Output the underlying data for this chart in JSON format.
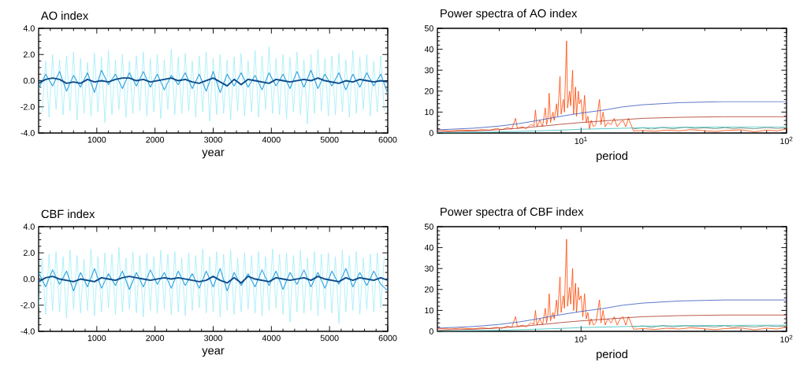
{
  "chart_data": [
    {
      "type": "line",
      "title": "AO index",
      "xlabel": "year",
      "xlim": [
        0,
        6000
      ],
      "ylim": [
        -4,
        4
      ],
      "xticks": [
        {
          "value": 200,
          "label": null
        },
        {
          "value": 400,
          "label": null
        },
        {
          "value": 600,
          "label": null
        },
        {
          "value": 800,
          "label": null
        },
        1000,
        {
          "value": 1200,
          "label": null
        },
        {
          "value": 1400,
          "label": null
        },
        {
          "value": 1600,
          "label": null
        },
        {
          "value": 1800,
          "label": null
        },
        2000,
        {
          "value": 2200,
          "label": null
        },
        {
          "value": 2400,
          "label": null
        },
        {
          "value": 2600,
          "label": null
        },
        {
          "value": 2800,
          "label": null
        },
        3000,
        {
          "value": 3200,
          "label": null
        },
        {
          "value": 3400,
          "label": null
        },
        {
          "value": 3600,
          "label": null
        },
        {
          "value": 3800,
          "label": null
        },
        4000,
        {
          "value": 4200,
          "label": null
        },
        {
          "value": 4400,
          "label": null
        },
        {
          "value": 4600,
          "label": null
        },
        {
          "value": 4800,
          "label": null
        },
        5000,
        {
          "value": 5200,
          "label": null
        },
        {
          "value": 5400,
          "label": null
        },
        {
          "value": 5600,
          "label": null
        },
        {
          "value": 5800,
          "label": null
        },
        6000
      ],
      "yticks": [
        {
          "value": -4,
          "label": "-4.0"
        },
        {
          "value": -3.5,
          "label": null
        },
        {
          "value": -3,
          "label": null
        },
        {
          "value": -2.5,
          "label": null
        },
        {
          "value": -2,
          "label": "-2.0"
        },
        {
          "value": -1.5,
          "label": null
        },
        {
          "value": -1,
          "label": null
        },
        {
          "value": -0.5,
          "label": null
        },
        {
          "value": 0,
          "label": "0.0"
        },
        {
          "value": 0.5,
          "label": null
        },
        {
          "value": 1,
          "label": null
        },
        {
          "value": 1.5,
          "label": null
        },
        {
          "value": 2,
          "label": "2.0"
        },
        {
          "value": 2.5,
          "label": null
        },
        {
          "value": 3,
          "label": null
        },
        {
          "value": 3.5,
          "label": null
        },
        {
          "value": 4,
          "label": "4.0"
        }
      ],
      "x": [
        60,
        120,
        180,
        240,
        300,
        360,
        420,
        480,
        540,
        600,
        660,
        720,
        780,
        840,
        900,
        960,
        1020,
        1080,
        1140,
        1200,
        1260,
        1320,
        1380,
        1440,
        1500,
        1560,
        1620,
        1680,
        1740,
        1800,
        1860,
        1920,
        1980,
        2040,
        2100,
        2160,
        2220,
        2280,
        2340,
        2400,
        2460,
        2520,
        2580,
        2640,
        2700,
        2760,
        2820,
        2880,
        2940,
        3000,
        3060,
        3120,
        3180,
        3240,
        3300,
        3360,
        3420,
        3480,
        3540,
        3600,
        3660,
        3720,
        3780,
        3840,
        3900,
        3960,
        4020,
        4080,
        4140,
        4200,
        4260,
        4320,
        4380,
        4440,
        4500,
        4560,
        4620,
        4680,
        4740,
        4800,
        4860,
        4920,
        4980,
        5040,
        5100,
        5160,
        5220,
        5280,
        5340,
        5400,
        5460,
        5520,
        5580,
        5640,
        5700,
        5760,
        5820,
        5880,
        5940
      ],
      "series": [
        {
          "color": "#8ceaf8",
          "values": [
            -2.4,
            1.5,
            -2.8,
            2.0,
            -2.2,
            1.6,
            -2.6,
            1.9,
            -2.3,
            2.2,
            -3.0,
            1.7,
            -2.5,
            1.4,
            -2.7,
            2.1,
            -2.4,
            1.8,
            -3.2,
            2.3,
            -2.6,
            1.6,
            -2.2,
            2.0,
            -2.8,
            1.5,
            -2.5,
            1.9,
            -2.3,
            2.2,
            -2.7,
            1.7,
            -2.4,
            2.0,
            -2.9,
            1.6,
            -2.2,
            2.4,
            -2.6,
            1.8,
            -2.5,
            2.1,
            -2.3,
            1.5,
            -2.8,
            1.9,
            -2.4,
            2.2,
            -3.1,
            1.7,
            -2.6,
            2.0,
            -2.5,
            1.6,
            -3.0,
            1.8,
            -2.3,
            2.1,
            -2.7,
            1.5,
            -2.4,
            2.3,
            -2.8,
            1.9,
            -2.2,
            2.6,
            -2.5,
            1.7,
            -2.6,
            2.0,
            -2.9,
            1.8,
            -2.4,
            2.2,
            -2.6,
            1.6,
            -3.3,
            2.0,
            -2.5,
            2.4,
            -2.3,
            1.7,
            -2.7,
            1.9,
            -2.6,
            2.1,
            -2.4,
            1.6,
            -2.8,
            2.3,
            -2.5,
            1.8,
            -2.2,
            2.0,
            -2.7,
            1.5,
            -2.4,
            1.9,
            -2.3
          ]
        },
        {
          "color": "#2a9fdf",
          "x": [
            0,
            120,
            240,
            360,
            480,
            600,
            720,
            840,
            960,
            1080,
            1200,
            1320,
            1440,
            1560,
            1680,
            1800,
            1920,
            2040,
            2160,
            2280,
            2400,
            2520,
            2640,
            2760,
            2880,
            3000,
            3120,
            3240,
            3360,
            3480,
            3600,
            3720,
            3840,
            3960,
            4080,
            4200,
            4320,
            4440,
            4560,
            4680,
            4800,
            4920,
            5040,
            5160,
            5280,
            5400,
            5520,
            5640,
            5760,
            5880,
            6000
          ],
          "values": [
            -0.6,
            0.5,
            -0.4,
            0.7,
            -0.8,
            0.4,
            -0.5,
            0.6,
            -0.9,
            0.8,
            -0.3,
            0.5,
            -0.6,
            0.6,
            -0.4,
            0.7,
            -0.5,
            0.5,
            -0.7,
            0.4,
            -0.3,
            0.6,
            -0.6,
            0.5,
            -0.8,
            0.7,
            -0.9,
            0.5,
            -0.4,
            0.6,
            -0.5,
            0.4,
            -0.7,
            0.6,
            -0.4,
            0.5,
            -0.6,
            0.7,
            -0.5,
            0.8,
            -0.6,
            0.5,
            -0.4,
            0.6,
            -0.7,
            0.5,
            -0.5,
            0.6,
            -0.4,
            0.5,
            -1.0
          ]
        },
        {
          "color": "#0b4a8a",
          "x": [
            0,
            120,
            240,
            360,
            480,
            600,
            720,
            840,
            960,
            1080,
            1200,
            1320,
            1440,
            1560,
            1680,
            1800,
            1920,
            2040,
            2160,
            2280,
            2400,
            2520,
            2640,
            2760,
            2880,
            3000,
            3120,
            3240,
            3360,
            3480,
            3600,
            3720,
            3840,
            3960,
            4080,
            4200,
            4320,
            4440,
            4560,
            4680,
            4800,
            4920,
            5040,
            5160,
            5280,
            5400,
            5520,
            5640,
            5760,
            5880,
            6000
          ],
          "values": [
            -0.2,
            0.1,
            0.2,
            0.1,
            -0.2,
            -0.1,
            -0.2,
            0.1,
            -0.1,
            0.0,
            -0.1,
            0.1,
            0.2,
            0.2,
            0.0,
            0.1,
            -0.1,
            0.0,
            0.1,
            0.2,
            0.0,
            0.1,
            -0.1,
            -0.2,
            0.0,
            0.2,
            -0.1,
            -0.4,
            0.1,
            -0.3,
            0.1,
            0.0,
            -0.1,
            -0.2,
            0.1,
            0.0,
            -0.1,
            0.0,
            0.1,
            0.0,
            0.2,
            0.0,
            -0.1,
            -0.2,
            0.0,
            -0.1,
            0.1,
            0.0,
            -0.1,
            0.0,
            -0.1
          ]
        }
      ]
    },
    {
      "type": "line",
      "title": "Power spectra of AO index",
      "xlabel": "period",
      "log": "x",
      "xlim": [
        2,
        100
      ],
      "ylim": [
        0,
        50
      ],
      "xticks": [
        {
          "value": 4,
          "label": null
        },
        {
          "value": 6,
          "label": null
        },
        {
          "value": 8,
          "label": null
        },
        {
          "value": 10,
          "label": "10$^{1}$"
        },
        {
          "value": 20,
          "label": null
        },
        {
          "value": 40,
          "label": null
        },
        {
          "value": 60,
          "label": null
        },
        {
          "value": 80,
          "label": null
        },
        {
          "value": 100,
          "label": "10$^{2}$"
        }
      ],
      "yticks": [
        0,
        {
          "value": 2,
          "label": null
        },
        {
          "value": 4,
          "label": null
        },
        {
          "value": 6,
          "label": null
        },
        {
          "value": 8,
          "label": null
        },
        10,
        {
          "value": 12,
          "label": null
        },
        {
          "value": 14,
          "label": null
        },
        {
          "value": 16,
          "label": null
        },
        {
          "value": 18,
          "label": null
        },
        20,
        {
          "value": 22,
          "label": null
        },
        {
          "value": 24,
          "label": null
        },
        {
          "value": 26,
          "label": null
        },
        {
          "value": 28,
          "label": null
        },
        30,
        {
          "value": 32,
          "label": null
        },
        {
          "value": 34,
          "label": null
        },
        {
          "value": 36,
          "label": null
        },
        {
          "value": 38,
          "label": null
        },
        40,
        {
          "value": 42,
          "label": null
        },
        {
          "value": 44,
          "label": null
        },
        {
          "value": 46,
          "label": null
        },
        {
          "value": 48,
          "label": null
        },
        50
      ],
      "series": [
        {
          "color": "#5f7f6c",
          "x": [
            18,
            20,
            22,
            25,
            28,
            32,
            36,
            40,
            45,
            50,
            55,
            60,
            70,
            80,
            90,
            100
          ],
          "values": [
            2,
            2.5,
            1.8,
            2.7,
            2.0,
            2.8,
            2.2,
            2.5,
            2.0,
            2.6,
            2.1,
            2.4,
            2.0,
            2.6,
            2.2,
            2.5
          ]
        },
        {
          "color": "#33bbbb",
          "x": [
            2,
            4,
            6,
            8,
            10,
            15,
            20,
            40,
            100
          ],
          "values": [
            0.2,
            0.5,
            1,
            1.4,
            1.8,
            2.2,
            2.5,
            2.8,
            3.0
          ]
        },
        {
          "color": "#ff4500",
          "x": [
            2.0,
            2.3,
            2.6,
            3.0,
            3.3,
            3.6,
            3.9,
            4.1,
            4.4,
            4.6,
            4.8,
            4.9,
            5.2,
            5.4,
            5.7,
            5.9,
            6.0,
            6.1,
            6.3,
            6.5,
            6.7,
            6.8,
            6.9,
            7.0,
            7.1,
            7.3,
            7.4,
            7.6,
            7.7,
            7.9,
            8.0,
            8.2,
            8.3,
            8.5,
            8.6,
            8.8,
            8.9,
            9.1,
            9.2,
            9.4,
            9.5,
            9.7,
            9.8,
            10.0,
            10.2,
            10.4,
            10.6,
            10.8,
            11.0,
            11.2,
            11.5,
            11.8,
            12.3,
            12.5,
            12.8,
            13.1,
            13.5,
            14,
            14.5,
            15,
            15.5,
            16,
            16.5,
            17,
            17.5,
            18,
            20,
            23,
            26,
            30,
            34,
            40,
            45,
            50,
            60,
            70,
            80,
            90,
            100
          ],
          "values": [
            1.5,
            1.0,
            1.4,
            1.2,
            1.6,
            1.3,
            2.2,
            1.5,
            2.6,
            1.8,
            7,
            2.2,
            3,
            2,
            4,
            3.5,
            11,
            3,
            6,
            3,
            12,
            4,
            7,
            19,
            5,
            10,
            6,
            14,
            8,
            27,
            9,
            16,
            10,
            44,
            12,
            20,
            13,
            30,
            9,
            22,
            8,
            20,
            14,
            16,
            6,
            18,
            5,
            8,
            2,
            6,
            3,
            4,
            16,
            4,
            10,
            3,
            5,
            4,
            7,
            3,
            5,
            6,
            3,
            7,
            4,
            1,
            1.2,
            0.8,
            1.4,
            1.0,
            1.6,
            1.1,
            0.7,
            1.2,
            1.5,
            0.6,
            1.4,
            1.0,
            2.0
          ]
        },
        {
          "color": "#3355bb",
          "x": [
            2,
            3,
            4,
            5,
            6,
            7,
            8,
            10,
            13,
            16,
            20,
            30,
            50,
            100
          ],
          "values": [
            1.5,
            2.3,
            3.3,
            4.5,
            5.8,
            7,
            8,
            9.5,
            11,
            12.5,
            13.5,
            14.5,
            15,
            15
          ]
        },
        {
          "color": "#aa3322",
          "x": [
            2,
            3,
            4,
            5,
            6,
            7,
            8,
            10,
            13,
            16,
            20,
            30,
            50,
            100
          ],
          "values": [
            0.5,
            1,
            1.6,
            2.3,
            3,
            3.6,
            4.2,
            5,
            5.8,
            6.4,
            7,
            7.5,
            7.8,
            7.8
          ]
        }
      ]
    },
    {
      "type": "line",
      "title": "CBF index",
      "xlabel": "year",
      "xlim": [
        0,
        6000
      ],
      "ylim": [
        -4,
        4
      ],
      "xticks": [
        {
          "value": 200,
          "label": null
        },
        {
          "value": 400,
          "label": null
        },
        {
          "value": 600,
          "label": null
        },
        {
          "value": 800,
          "label": null
        },
        1000,
        {
          "value": 1200,
          "label": null
        },
        {
          "value": 1400,
          "label": null
        },
        {
          "value": 1600,
          "label": null
        },
        {
          "value": 1800,
          "label": null
        },
        2000,
        {
          "value": 2200,
          "label": null
        },
        {
          "value": 2400,
          "label": null
        },
        {
          "value": 2600,
          "label": null
        },
        {
          "value": 2800,
          "label": null
        },
        3000,
        {
          "value": 3200,
          "label": null
        },
        {
          "value": 3400,
          "label": null
        },
        {
          "value": 3600,
          "label": null
        },
        {
          "value": 3800,
          "label": null
        },
        4000,
        {
          "value": 4200,
          "label": null
        },
        {
          "value": 4400,
          "label": null
        },
        {
          "value": 4600,
          "label": null
        },
        {
          "value": 4800,
          "label": null
        },
        5000,
        {
          "value": 5200,
          "label": null
        },
        {
          "value": 5400,
          "label": null
        },
        {
          "value": 5600,
          "label": null
        },
        {
          "value": 5800,
          "label": null
        },
        6000
      ],
      "yticks": [
        {
          "value": -4,
          "label": "-4.0"
        },
        {
          "value": -3.5,
          "label": null
        },
        {
          "value": -3,
          "label": null
        },
        {
          "value": -2.5,
          "label": null
        },
        {
          "value": -2,
          "label": "-2.0"
        },
        {
          "value": -1.5,
          "label": null
        },
        {
          "value": -1,
          "label": null
        },
        {
          "value": -0.5,
          "label": null
        },
        {
          "value": 0,
          "label": "0.0"
        },
        {
          "value": 0.5,
          "label": null
        },
        {
          "value": 1,
          "label": null
        },
        {
          "value": 1.5,
          "label": null
        },
        {
          "value": 2,
          "label": "2.0"
        },
        {
          "value": 2.5,
          "label": null
        },
        {
          "value": 3,
          "label": null
        },
        {
          "value": 3.5,
          "label": null
        },
        {
          "value": 4,
          "label": "4.0"
        }
      ],
      "x": [
        0,
        60,
        120,
        180,
        240,
        300,
        360,
        420,
        480,
        540,
        600,
        660,
        720,
        780,
        840,
        900,
        960,
        1020,
        1080,
        1140,
        1200,
        1260,
        1320,
        1380,
        1440,
        1500,
        1560,
        1620,
        1680,
        1740,
        1800,
        1860,
        1920,
        1980,
        2040,
        2100,
        2160,
        2220,
        2280,
        2340,
        2400,
        2460,
        2520,
        2580,
        2640,
        2700,
        2760,
        2820,
        2880,
        2940,
        3000,
        3060,
        3120,
        3180,
        3240,
        3300,
        3360,
        3420,
        3480,
        3540,
        3600,
        3660,
        3720,
        3780,
        3840,
        3900,
        3960,
        4020,
        4080,
        4140,
        4200,
        4260,
        4320,
        4380,
        4440,
        4500,
        4560,
        4620,
        4680,
        4740,
        4800,
        4860,
        4920,
        4980,
        5040,
        5100,
        5160,
        5220,
        5280,
        5340,
        5400,
        5460,
        5520,
        5580,
        5640,
        5700,
        5760,
        5820,
        5880,
        5940
      ],
      "series": [
        {
          "color": "#8ceaf8",
          "values": [
            -2.2,
            1.6,
            -2.7,
            1.9,
            -2.4,
            2.1,
            -2.5,
            1.7,
            -3.0,
            2.2,
            -2.3,
            1.8,
            -2.6,
            1.5,
            -2.4,
            2.3,
            -2.8,
            1.7,
            -2.5,
            2.0,
            -2.2,
            1.9,
            -2.7,
            2.4,
            -2.5,
            1.6,
            -2.3,
            2.1,
            -2.6,
            1.8,
            -2.9,
            2.0,
            -2.4,
            1.7,
            -2.6,
            2.2,
            -2.3,
            1.9,
            -2.7,
            2.1,
            -2.5,
            1.6,
            -2.8,
            2.0,
            -2.4,
            1.8,
            -2.2,
            2.3,
            -2.6,
            1.7,
            -2.5,
            2.1,
            -2.9,
            1.9,
            -2.4,
            2.2,
            -2.7,
            1.6,
            -2.5,
            2.0,
            -2.3,
            1.8,
            -2.6,
            2.1,
            -2.8,
            1.7,
            -2.4,
            2.3,
            -2.2,
            1.9,
            -2.7,
            2.0,
            -3.3,
            1.8,
            -2.5,
            2.2,
            -2.6,
            1.6,
            -2.4,
            2.1,
            -2.8,
            1.9,
            -2.3,
            2.0,
            -2.6,
            1.7,
            -3.4,
            2.2,
            -2.5,
            1.8,
            -2.4,
            2.1,
            -2.7,
            1.6,
            -2.3,
            1.9,
            -2.5,
            2.0,
            -2.2,
            1.7
          ]
        },
        {
          "color": "#2a9fdf",
          "x": [
            0,
            120,
            240,
            360,
            480,
            600,
            720,
            840,
            960,
            1080,
            1200,
            1320,
            1440,
            1560,
            1680,
            1800,
            1920,
            2040,
            2160,
            2280,
            2400,
            2520,
            2640,
            2760,
            2880,
            3000,
            3120,
            3240,
            3360,
            3480,
            3600,
            3720,
            3840,
            3960,
            4080,
            4200,
            4320,
            4440,
            4560,
            4680,
            4800,
            4920,
            5040,
            5160,
            5280,
            5400,
            5520,
            5640,
            5760,
            5880,
            6000
          ],
          "values": [
            0.5,
            -0.6,
            0.7,
            -0.4,
            0.6,
            -0.9,
            0.5,
            -0.6,
            0.8,
            -0.7,
            0.4,
            -0.5,
            0.6,
            -0.8,
            0.5,
            -0.6,
            0.7,
            -0.4,
            0.5,
            -0.7,
            0.6,
            -0.5,
            0.4,
            -0.7,
            0.6,
            -0.6,
            0.8,
            -0.9,
            0.5,
            -0.5,
            0.4,
            -0.6,
            0.7,
            -0.5,
            0.6,
            -0.8,
            0.5,
            -0.4,
            0.7,
            -0.6,
            0.5,
            -0.7,
            0.6,
            -0.4,
            0.8,
            -0.6,
            0.5,
            -0.5,
            0.6,
            -0.4,
            -0.9
          ]
        },
        {
          "color": "#0b4a8a",
          "x": [
            0,
            120,
            240,
            360,
            480,
            600,
            720,
            840,
            960,
            1080,
            1200,
            1320,
            1440,
            1560,
            1680,
            1800,
            1920,
            2040,
            2160,
            2280,
            2400,
            2520,
            2640,
            2760,
            2880,
            3000,
            3120,
            3240,
            3360,
            3480,
            3600,
            3720,
            3840,
            3960,
            4080,
            4200,
            4320,
            4440,
            4560,
            4680,
            4800,
            4920,
            5040,
            5160,
            5280,
            5400,
            5520,
            5640,
            5760,
            5880,
            6000
          ],
          "values": [
            -0.2,
            0.1,
            0.2,
            0.0,
            -0.1,
            -0.2,
            0.0,
            -0.1,
            -0.2,
            0.1,
            0.0,
            -0.1,
            0.1,
            0.2,
            0.1,
            0.0,
            -0.1,
            0.0,
            0.1,
            0.0,
            0.1,
            0.0,
            -0.1,
            -0.2,
            -0.1,
            0.2,
            -0.1,
            -0.3,
            0.1,
            -0.3,
            0.2,
            0.0,
            -0.1,
            -0.2,
            0.1,
            0.0,
            -0.1,
            0.0,
            0.1,
            -0.1,
            0.2,
            0.0,
            -0.1,
            -0.2,
            0.1,
            -0.1,
            0.1,
            0.0,
            -0.1,
            0.1,
            -0.1
          ]
        }
      ]
    },
    {
      "type": "line",
      "title": "Power spectra of CBF index",
      "xlabel": "period",
      "log": "x",
      "xlim": [
        2,
        100
      ],
      "ylim": [
        0,
        50
      ],
      "xticks": [
        {
          "value": 4,
          "label": null
        },
        {
          "value": 6,
          "label": null
        },
        {
          "value": 8,
          "label": null
        },
        {
          "value": 10,
          "label": "10$^{1}$"
        },
        {
          "value": 20,
          "label": null
        },
        {
          "value": 40,
          "label": null
        },
        {
          "value": 60,
          "label": null
        },
        {
          "value": 80,
          "label": null
        },
        {
          "value": 100,
          "label": "10$^{2}$"
        }
      ],
      "yticks": [
        0,
        {
          "value": 2,
          "label": null
        },
        {
          "value": 4,
          "label": null
        },
        {
          "value": 6,
          "label": null
        },
        {
          "value": 8,
          "label": null
        },
        10,
        {
          "value": 12,
          "label": null
        },
        {
          "value": 14,
          "label": null
        },
        {
          "value": 16,
          "label": null
        },
        {
          "value": 18,
          "label": null
        },
        20,
        {
          "value": 22,
          "label": null
        },
        {
          "value": 24,
          "label": null
        },
        {
          "value": 26,
          "label": null
        },
        {
          "value": 28,
          "label": null
        },
        30,
        {
          "value": 32,
          "label": null
        },
        {
          "value": 34,
          "label": null
        },
        {
          "value": 36,
          "label": null
        },
        {
          "value": 38,
          "label": null
        },
        40,
        {
          "value": 42,
          "label": null
        },
        {
          "value": 44,
          "label": null
        },
        {
          "value": 46,
          "label": null
        },
        {
          "value": 48,
          "label": null
        },
        50
      ],
      "series": [
        {
          "color": "#5f7f6c",
          "x": [
            18,
            20,
            22,
            25,
            28,
            32,
            36,
            40,
            45,
            50,
            55,
            60,
            70,
            80,
            90,
            100
          ],
          "values": [
            2.2,
            2.6,
            1.9,
            2.8,
            2.1,
            2.7,
            2.3,
            2.4,
            2.1,
            2.7,
            2.0,
            2.5,
            2.1,
            2.7,
            2.3,
            2.6
          ]
        },
        {
          "color": "#33bbbb",
          "x": [
            2,
            4,
            6,
            8,
            10,
            15,
            20,
            40,
            100
          ],
          "values": [
            0.2,
            0.5,
            1,
            1.4,
            1.8,
            2.2,
            2.5,
            2.8,
            3.0
          ]
        },
        {
          "color": "#ff4500",
          "x": [
            2.0,
            2.3,
            2.6,
            3.0,
            3.3,
            3.6,
            3.9,
            4.1,
            4.4,
            4.6,
            4.8,
            4.9,
            5.2,
            5.4,
            5.7,
            5.9,
            6.0,
            6.1,
            6.3,
            6.5,
            6.7,
            6.8,
            6.9,
            7.0,
            7.1,
            7.3,
            7.4,
            7.6,
            7.7,
            7.9,
            8.0,
            8.2,
            8.3,
            8.5,
            8.6,
            8.8,
            8.9,
            9.1,
            9.2,
            9.4,
            9.5,
            9.7,
            9.8,
            10.0,
            10.2,
            10.4,
            10.6,
            10.8,
            11.0,
            11.2,
            11.5,
            11.8,
            12.3,
            12.5,
            12.8,
            13.1,
            13.5,
            14,
            14.5,
            15,
            15.5,
            16,
            16.5,
            17,
            17.5,
            18,
            20,
            23,
            26,
            30,
            34,
            40,
            45,
            50,
            60,
            70,
            80,
            90,
            100
          ],
          "values": [
            1.4,
            1.1,
            1.5,
            1.2,
            1.7,
            1.3,
            2.0,
            1.4,
            2.5,
            1.9,
            7,
            2.3,
            3,
            2.1,
            4,
            3.4,
            10,
            3,
            6,
            3,
            11,
            4,
            8,
            18,
            5,
            9,
            6,
            15,
            8,
            26,
            9,
            17,
            11,
            44,
            12,
            21,
            13,
            30,
            10,
            23,
            9,
            21,
            15,
            17,
            7,
            18,
            6,
            9,
            3,
            6,
            3,
            4,
            15,
            4,
            10,
            3,
            6,
            4,
            7,
            3,
            6,
            7,
            3,
            7,
            4,
            1,
            1.3,
            0.9,
            1.5,
            1.1,
            1.7,
            1.2,
            0.8,
            1.3,
            1.6,
            0.7,
            1.5,
            1.1,
            2.1
          ]
        },
        {
          "color": "#3355bb",
          "x": [
            2,
            3,
            4,
            5,
            6,
            7,
            8,
            10,
            13,
            16,
            20,
            30,
            50,
            100
          ],
          "values": [
            1.5,
            2.3,
            3.3,
            4.5,
            5.8,
            7,
            8,
            9.5,
            11,
            12.5,
            13.5,
            14.5,
            15,
            15
          ]
        },
        {
          "color": "#aa3322",
          "x": [
            2,
            3,
            4,
            5,
            6,
            7,
            8,
            10,
            13,
            16,
            20,
            30,
            50,
            100
          ],
          "values": [
            0.5,
            1,
            1.6,
            2.3,
            3,
            3.6,
            4.2,
            5,
            5.8,
            6.4,
            7,
            7.5,
            7.8,
            7.8
          ]
        }
      ]
    }
  ]
}
